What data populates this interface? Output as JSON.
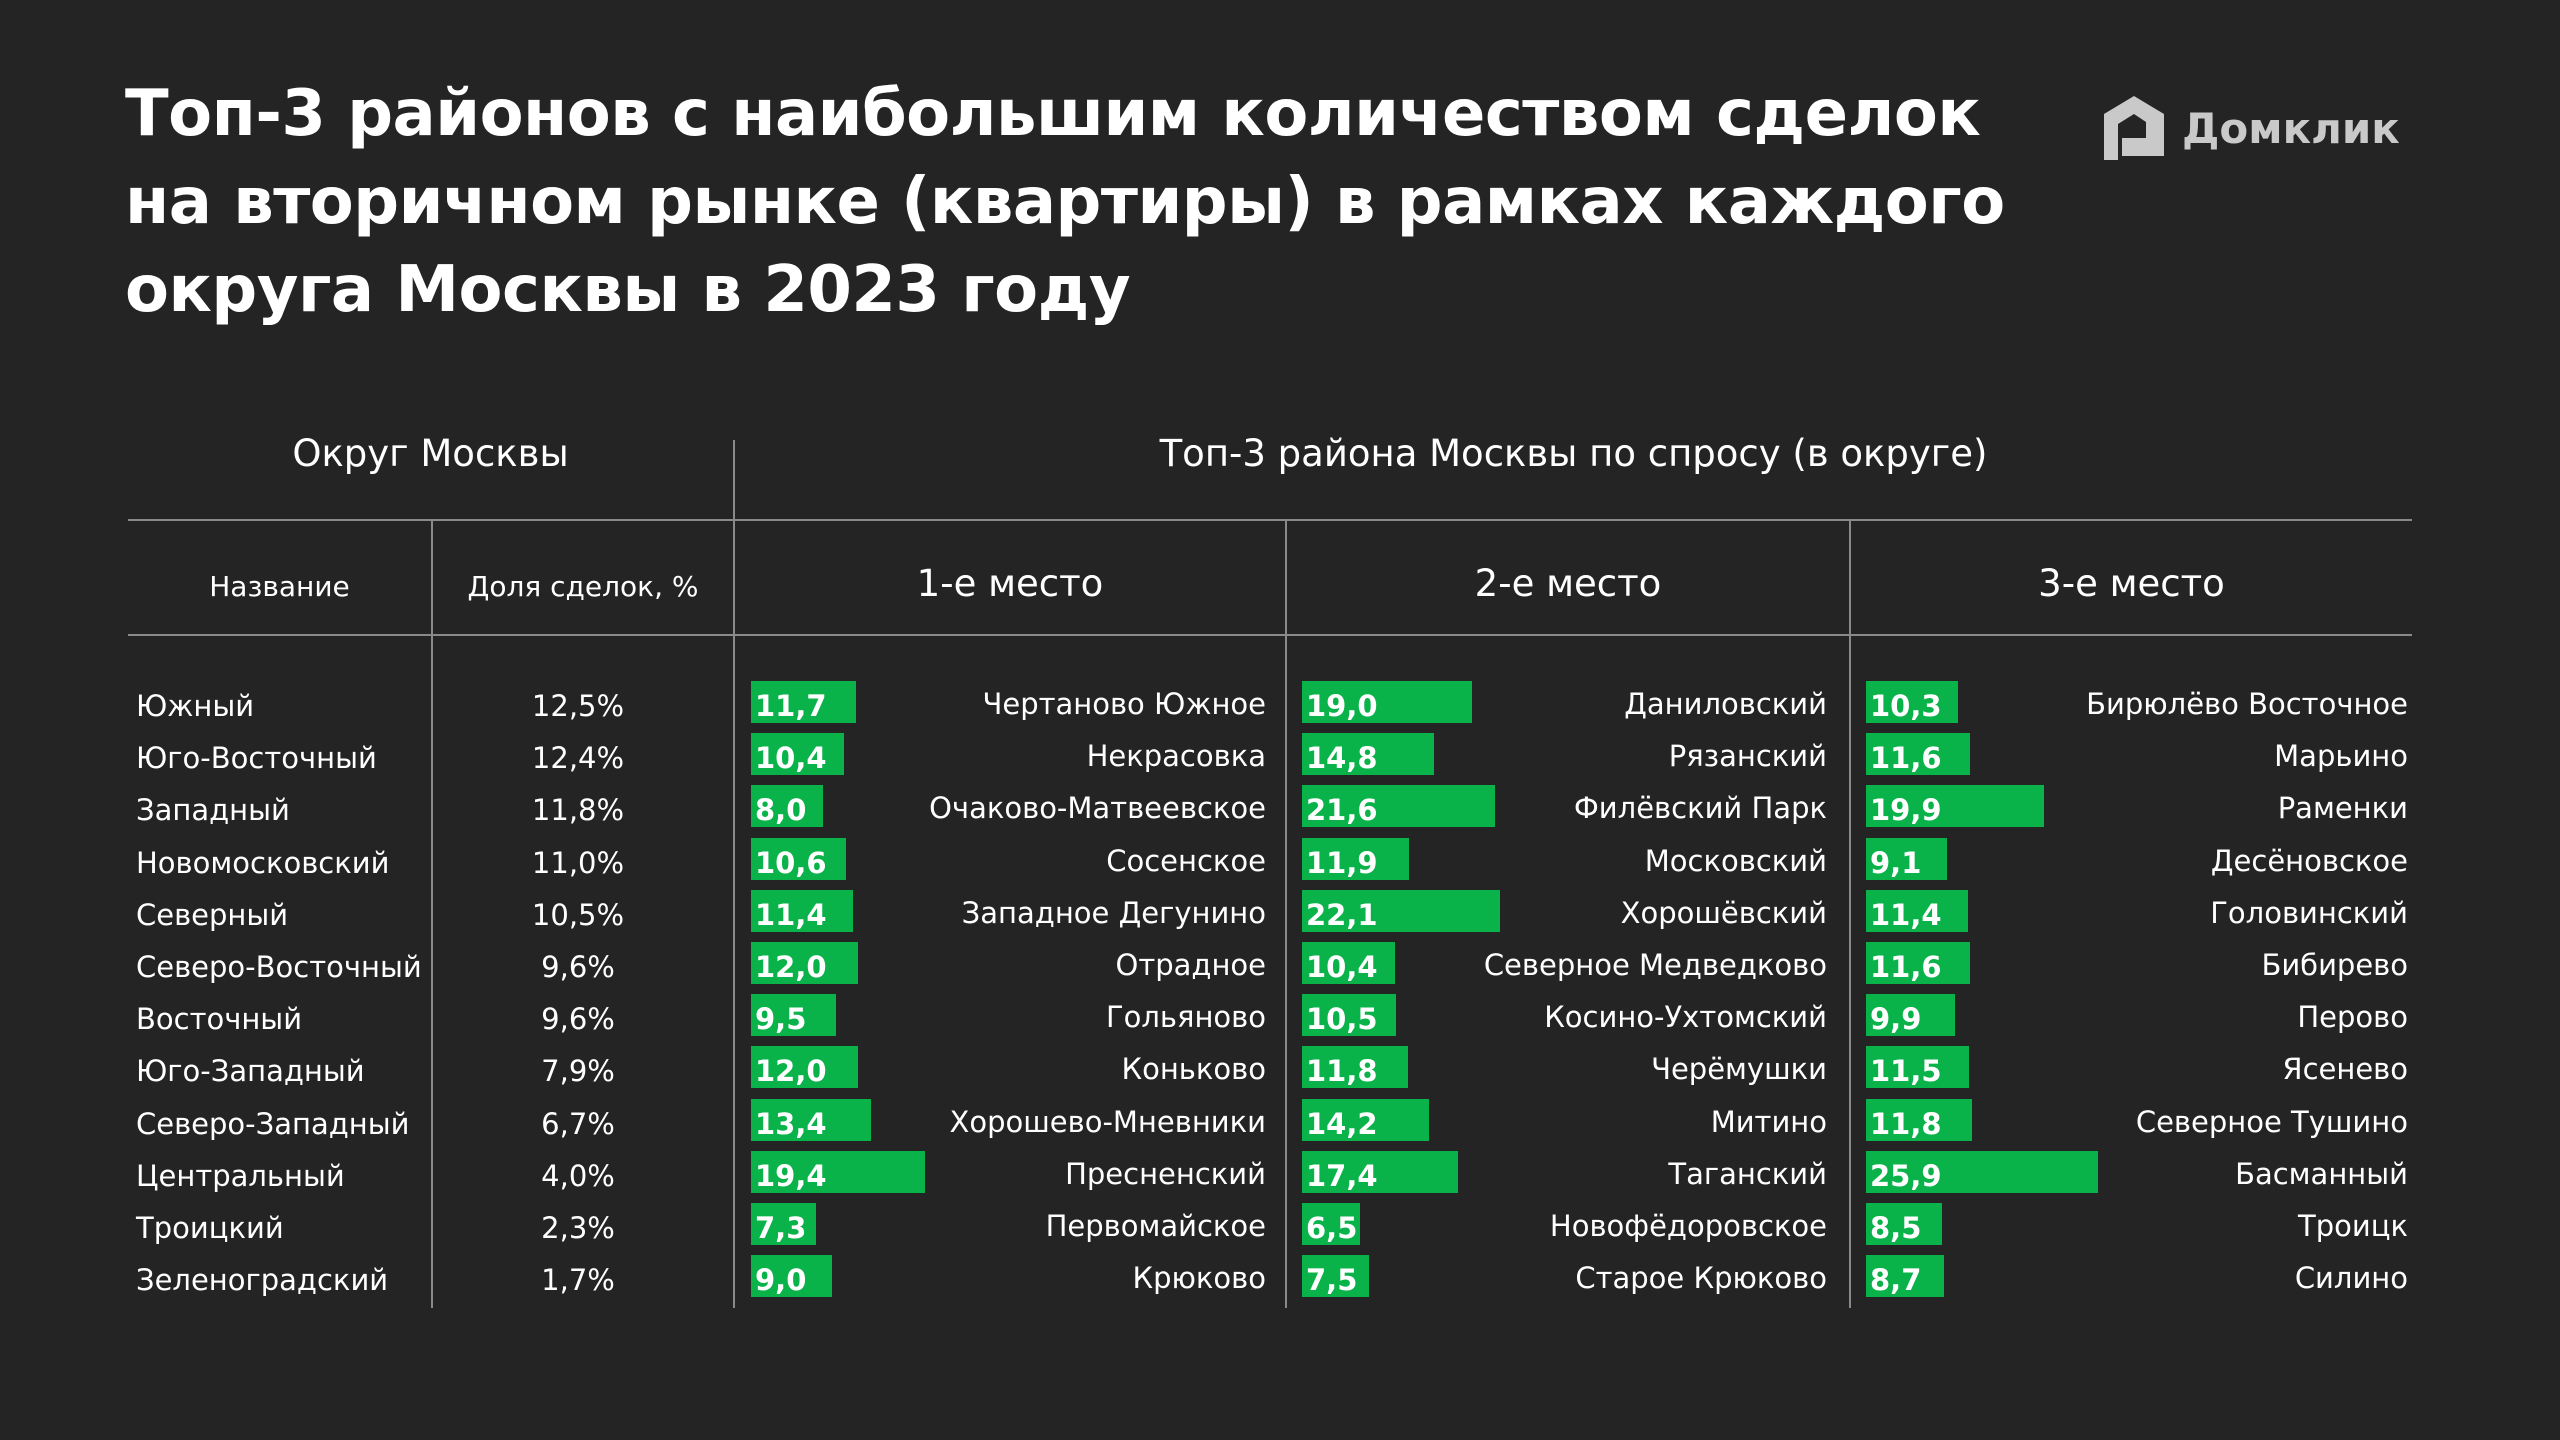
{
  "title_lines": [
    "Топ-3 районов с наибольшим количеством сделок",
    "на вторичном рынке (квартиры) в рамках каждого",
    "округа Москвы в 2023 году"
  ],
  "logo": {
    "text": "Домклик",
    "icon": "house-logo-icon",
    "color": "#c9c9c9"
  },
  "colors": {
    "background": "#242424",
    "bar": "#0ab34a",
    "text": "#ffffff",
    "rule": "#8a8a8a"
  },
  "headers": {
    "okrug_group": "Округ Москвы",
    "top_group": "Топ-3 района Москвы по спросу (в округе)",
    "name": "Название",
    "share": "Доля сделок, %",
    "place1": "1-е место",
    "place2": "2-е место",
    "place3": "3-е место"
  },
  "chart_data": {
    "type": "table",
    "bar_scale_max": 26,
    "rows": [
      {
        "okrug": "Южный",
        "share": "12,5%",
        "top": [
          {
            "district": "Чертаново Южное",
            "value": 11.7,
            "label": "11,7"
          },
          {
            "district": "Даниловский",
            "value": 19.0,
            "label": "19,0"
          },
          {
            "district": "Бирюлёво Восточное",
            "value": 10.3,
            "label": "10,3"
          }
        ]
      },
      {
        "okrug": "Юго-Восточный",
        "share": "12,4%",
        "top": [
          {
            "district": "Некрасовка",
            "value": 10.4,
            "label": "10,4"
          },
          {
            "district": "Рязанский",
            "value": 14.8,
            "label": "14,8"
          },
          {
            "district": "Марьино",
            "value": 11.6,
            "label": "11,6"
          }
        ]
      },
      {
        "okrug": "Западный",
        "share": "11,8%",
        "top": [
          {
            "district": "Очаково-Матвеевское",
            "value": 8.0,
            "label": "8,0"
          },
          {
            "district": "Филёвский Парк",
            "value": 21.6,
            "label": "21,6"
          },
          {
            "district": "Раменки",
            "value": 19.9,
            "label": "19,9"
          }
        ]
      },
      {
        "okrug": "Новомосковский",
        "share": "11,0%",
        "top": [
          {
            "district": "Сосенское",
            "value": 10.6,
            "label": "10,6"
          },
          {
            "district": "Московский",
            "value": 11.9,
            "label": "11,9"
          },
          {
            "district": "Десёновское",
            "value": 9.1,
            "label": "9,1"
          }
        ]
      },
      {
        "okrug": "Северный",
        "share": "10,5%",
        "top": [
          {
            "district": "Западное Дегунино",
            "value": 11.4,
            "label": "11,4"
          },
          {
            "district": "Хорошёвский",
            "value": 22.1,
            "label": "22,1"
          },
          {
            "district": "Головинский",
            "value": 11.4,
            "label": "11,4"
          }
        ]
      },
      {
        "okrug": "Северо-Восточный",
        "share": "9,6%",
        "top": [
          {
            "district": "Отрадное",
            "value": 12.0,
            "label": "12,0"
          },
          {
            "district": "Северное Медведково",
            "value": 10.4,
            "label": "10,4"
          },
          {
            "district": "Бибирево",
            "value": 11.6,
            "label": "11,6"
          }
        ]
      },
      {
        "okrug": "Восточный",
        "share": "9,6%",
        "top": [
          {
            "district": "Гольяново",
            "value": 9.5,
            "label": "9,5"
          },
          {
            "district": "Косино-Ухтомский",
            "value": 10.5,
            "label": "10,5"
          },
          {
            "district": "Перово",
            "value": 9.9,
            "label": "9,9"
          }
        ]
      },
      {
        "okrug": "Юго-Западный",
        "share": "7,9%",
        "top": [
          {
            "district": "Коньково",
            "value": 12.0,
            "label": "12,0"
          },
          {
            "district": "Черёмушки",
            "value": 11.8,
            "label": "11,8"
          },
          {
            "district": "Ясенево",
            "value": 11.5,
            "label": "11,5"
          }
        ]
      },
      {
        "okrug": "Северо-Западный",
        "share": "6,7%",
        "top": [
          {
            "district": "Хорошево-Мневники",
            "value": 13.4,
            "label": "13,4"
          },
          {
            "district": "Митино",
            "value": 14.2,
            "label": "14,2"
          },
          {
            "district": "Северное Тушино",
            "value": 11.8,
            "label": "11,8"
          }
        ]
      },
      {
        "okrug": "Центральный",
        "share": "4,0%",
        "top": [
          {
            "district": "Пресненский",
            "value": 19.4,
            "label": "19,4"
          },
          {
            "district": "Таганский",
            "value": 17.4,
            "label": "17,4"
          },
          {
            "district": "Басманный",
            "value": 25.9,
            "label": "25,9"
          }
        ]
      },
      {
        "okrug": "Троицкий",
        "share": "2,3%",
        "top": [
          {
            "district": "Первомайское",
            "value": 7.3,
            "label": "7,3"
          },
          {
            "district": "Новофёдоровское",
            "value": 6.5,
            "label": "6,5"
          },
          {
            "district": "Троицк",
            "value": 8.5,
            "label": "8,5"
          }
        ]
      },
      {
        "okrug": "Зеленоградский",
        "share": "1,7%",
        "top": [
          {
            "district": "Крюково",
            "value": 9.0,
            "label": "9,0"
          },
          {
            "district": "Старое Крюково",
            "value": 7.5,
            "label": "7,5"
          },
          {
            "district": "Силино",
            "value": 8.7,
            "label": "8,7"
          }
        ]
      }
    ]
  }
}
